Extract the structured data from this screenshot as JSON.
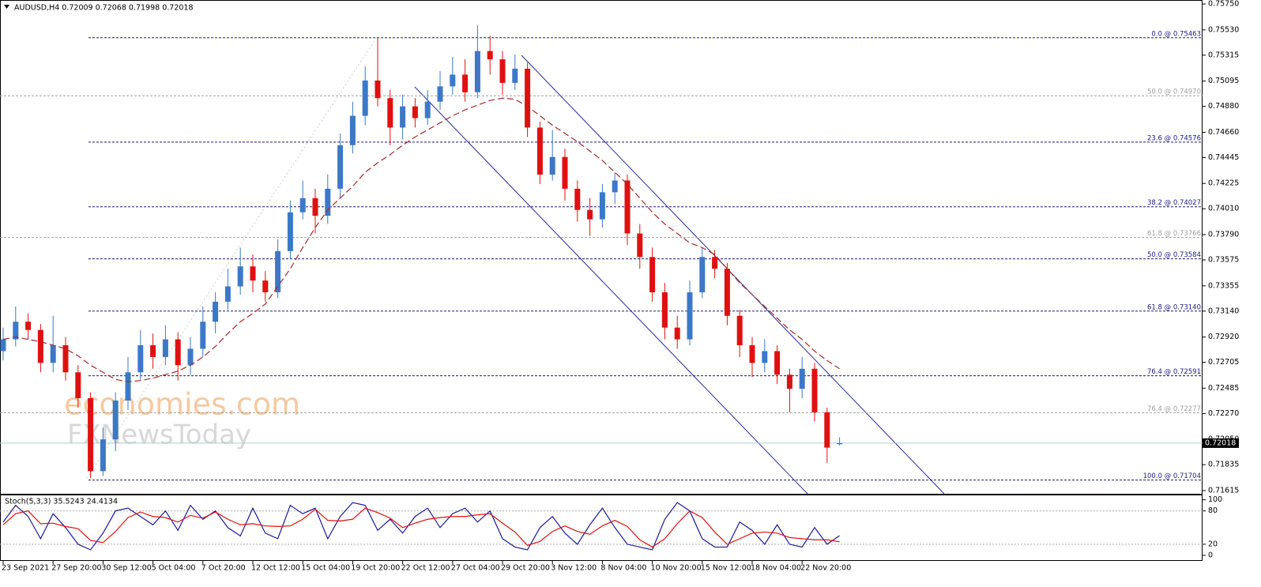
{
  "chart_data": [
    {
      "type": "candlestick",
      "title": "AUDUSD,H4  0.72009 0.72068 0.71998 0.72018",
      "watermark": [
        "economies.com",
        "FXNewsToday"
      ],
      "up_color": "#3c78c8",
      "down_color": "#e01010",
      "categories": [
        "23 Sep 2021",
        null,
        null,
        null,
        "27 Sep 20:00",
        null,
        null,
        null,
        "30 Sep 12:00",
        null,
        null,
        null,
        "5 Oct 04:00",
        null,
        null,
        null,
        "7 Oct 20:00",
        null,
        null,
        null,
        "12 Oct 12:00",
        null,
        null,
        null,
        "15 Oct 04:00",
        null,
        null,
        null,
        "19 Oct 20:00",
        null,
        null,
        null,
        "22 Oct 12:00",
        null,
        null,
        null,
        "27 Oct 04:00",
        null,
        null,
        null,
        "29 Oct 20:00",
        null,
        null,
        null,
        "3 Nov 12:00",
        null,
        null,
        null,
        "8 Nov 04:00",
        null,
        null,
        null,
        "10 Nov 20:00",
        null,
        null,
        null,
        "15 Nov 12:00",
        null,
        null,
        null,
        "18 Nov 04:00",
        null,
        null,
        null,
        "22 Nov 20:00",
        null,
        null,
        null
      ],
      "ohlc": [
        [
          0.728,
          0.73,
          0.7272,
          0.729
        ],
        [
          0.729,
          0.7318,
          0.7284,
          0.7305
        ],
        [
          0.7305,
          0.7312,
          0.729,
          0.7298
        ],
        [
          0.7298,
          0.7303,
          0.7262,
          0.727
        ],
        [
          0.727,
          0.731,
          0.7262,
          0.7285
        ],
        [
          0.7285,
          0.7292,
          0.7255,
          0.7262
        ],
        [
          0.7262,
          0.7268,
          0.7232,
          0.724
        ],
        [
          0.724,
          0.7245,
          0.7172,
          0.7178
        ],
        [
          0.7178,
          0.7215,
          0.7174,
          0.7205
        ],
        [
          0.7205,
          0.7245,
          0.7195,
          0.7238
        ],
        [
          0.7238,
          0.7275,
          0.723,
          0.7262
        ],
        [
          0.7262,
          0.7298,
          0.7255,
          0.7285
        ],
        [
          0.7285,
          0.7295,
          0.7265,
          0.7275
        ],
        [
          0.7275,
          0.7302,
          0.7268,
          0.729
        ],
        [
          0.729,
          0.7296,
          0.7255,
          0.7268
        ],
        [
          0.7268,
          0.7292,
          0.726,
          0.7282
        ],
        [
          0.7282,
          0.7318,
          0.7275,
          0.7305
        ],
        [
          0.7305,
          0.733,
          0.7295,
          0.7322
        ],
        [
          0.7322,
          0.735,
          0.7315,
          0.7335
        ],
        [
          0.7335,
          0.7368,
          0.7328,
          0.7352
        ],
        [
          0.7352,
          0.7362,
          0.733,
          0.734
        ],
        [
          0.734,
          0.7348,
          0.7322,
          0.733
        ],
        [
          0.733,
          0.7375,
          0.7325,
          0.7365
        ],
        [
          0.7365,
          0.7408,
          0.7358,
          0.7398
        ],
        [
          0.7398,
          0.7425,
          0.7392,
          0.741
        ],
        [
          0.741,
          0.7418,
          0.738,
          0.7395
        ],
        [
          0.7395,
          0.743,
          0.7388,
          0.7418
        ],
        [
          0.7418,
          0.7465,
          0.741,
          0.7455
        ],
        [
          0.7455,
          0.7492,
          0.7448,
          0.748
        ],
        [
          0.748,
          0.7522,
          0.7472,
          0.751
        ],
        [
          0.751,
          0.7546,
          0.7488,
          0.7495
        ],
        [
          0.7495,
          0.7502,
          0.7455,
          0.747
        ],
        [
          0.747,
          0.7498,
          0.746,
          0.7488
        ],
        [
          0.7488,
          0.7495,
          0.747,
          0.7478
        ],
        [
          0.7478,
          0.7502,
          0.7472,
          0.7492
        ],
        [
          0.7492,
          0.7518,
          0.7485,
          0.7505
        ],
        [
          0.7505,
          0.753,
          0.7498,
          0.7515
        ],
        [
          0.7515,
          0.7528,
          0.7492,
          0.75
        ],
        [
          0.75,
          0.7557,
          0.7495,
          0.7535
        ],
        [
          0.7535,
          0.7548,
          0.7515,
          0.7528
        ],
        [
          0.7528,
          0.7535,
          0.7498,
          0.7508
        ],
        [
          0.7508,
          0.7532,
          0.7502,
          0.752
        ],
        [
          0.752,
          0.7525,
          0.7462,
          0.747
        ],
        [
          0.747,
          0.7475,
          0.7422,
          0.743
        ],
        [
          0.743,
          0.7468,
          0.7425,
          0.7445
        ],
        [
          0.7445,
          0.7452,
          0.7408,
          0.7418
        ],
        [
          0.7418,
          0.7425,
          0.739,
          0.74
        ],
        [
          0.74,
          0.741,
          0.7378,
          0.7392
        ],
        [
          0.7392,
          0.7422,
          0.7385,
          0.7415
        ],
        [
          0.7415,
          0.7432,
          0.7405,
          0.7425
        ],
        [
          0.7425,
          0.743,
          0.737,
          0.738
        ],
        [
          0.738,
          0.7388,
          0.735,
          0.736
        ],
        [
          0.736,
          0.7368,
          0.7322,
          0.733
        ],
        [
          0.733,
          0.7338,
          0.729,
          0.73
        ],
        [
          0.73,
          0.731,
          0.7282,
          0.729
        ],
        [
          0.729,
          0.734,
          0.7285,
          0.733
        ],
        [
          0.733,
          0.7368,
          0.7325,
          0.736
        ],
        [
          0.736,
          0.7366,
          0.7342,
          0.735
        ],
        [
          0.735,
          0.7355,
          0.7302,
          0.731
        ],
        [
          0.731,
          0.7315,
          0.7275,
          0.7285
        ],
        [
          0.7285,
          0.7292,
          0.7258,
          0.727
        ],
        [
          0.727,
          0.729,
          0.7262,
          0.728
        ],
        [
          0.728,
          0.7285,
          0.7252,
          0.726
        ],
        [
          0.726,
          0.7265,
          0.7228,
          0.7248
        ],
        [
          0.7248,
          0.7275,
          0.724,
          0.7265
        ],
        [
          0.7265,
          0.727,
          0.722,
          0.7228
        ],
        [
          0.7228,
          0.7232,
          0.7185,
          0.7198
        ],
        [
          0.72009,
          0.72068,
          0.71998,
          0.72018
        ]
      ],
      "ma": {
        "color": "#a52a2a",
        "values": [
          0.729,
          0.7292,
          0.729,
          0.7288,
          0.7285,
          0.7282,
          0.7276,
          0.7268,
          0.7262,
          0.7256,
          0.7254,
          0.7255,
          0.7257,
          0.726,
          0.7263,
          0.7268,
          0.7275,
          0.7284,
          0.7295,
          0.7305,
          0.7312,
          0.732,
          0.7335,
          0.735,
          0.7368,
          0.7385,
          0.74,
          0.741,
          0.742,
          0.7432,
          0.744,
          0.7447,
          0.7455,
          0.7462,
          0.7468,
          0.7474,
          0.748,
          0.7485,
          0.7489,
          0.7493,
          0.7495,
          0.7494,
          0.7488,
          0.748,
          0.7472,
          0.7465,
          0.7458,
          0.745,
          0.7442,
          0.7432,
          0.7422,
          0.741,
          0.7398,
          0.7388,
          0.738,
          0.7372,
          0.7368,
          0.7362,
          0.735,
          0.7338,
          0.7328,
          0.7318,
          0.7308,
          0.7298,
          0.729,
          0.728,
          0.7272,
          0.7265
        ]
      },
      "ylim": [
        0.71581,
        0.75784
      ],
      "yticks": [
        {
          "value": 0.7575,
          "label": "0.75750"
        },
        {
          "value": 0.7553,
          "label": "0.75530"
        },
        {
          "value": 0.75315,
          "label": "0.75315"
        },
        {
          "value": 0.75095,
          "label": "0.75095"
        },
        {
          "value": 0.7488,
          "label": "0.74880"
        },
        {
          "value": 0.7466,
          "label": "0.74660"
        },
        {
          "value": 0.74445,
          "label": "0.74445"
        },
        {
          "value": 0.74225,
          "label": "0.74225"
        },
        {
          "value": 0.7401,
          "label": "0.74010"
        },
        {
          "value": 0.7379,
          "label": "0.73790"
        },
        {
          "value": 0.73575,
          "label": "0.73575"
        },
        {
          "value": 0.73355,
          "label": "0.73355"
        },
        {
          "value": 0.7314,
          "label": "0.73140"
        },
        {
          "value": 0.7292,
          "label": "0.72920"
        },
        {
          "value": 0.72705,
          "label": "0.72705"
        },
        {
          "value": 0.72485,
          "label": "0.72485"
        },
        {
          "value": 0.7227,
          "label": "0.72270"
        },
        {
          "value": 0.7205,
          "label": "0.72050"
        },
        {
          "value": 0.71835,
          "label": "0.71835"
        },
        {
          "value": 0.71615,
          "label": "0.71615"
        }
      ],
      "last_price": {
        "value": 0.72018,
        "label": "0.72018"
      },
      "levels": [
        {
          "value": 0.75463,
          "label": "0.0 @ 0.75463",
          "color": "#1a1a80"
        },
        {
          "value": 0.7497,
          "label": "50.0 @ 0.74970",
          "color": "#a0a0a0"
        },
        {
          "value": 0.74576,
          "label": "23.6 @ 0.74576",
          "color": "#1a1a80"
        },
        {
          "value": 0.74027,
          "label": "38.2 @ 0.74027",
          "color": "#1a1a80"
        },
        {
          "value": 0.73766,
          "label": "61.8 @ 0.73766",
          "color": "#a0a0a0"
        },
        {
          "value": 0.73584,
          "label": "50.0 @ 0.73584",
          "color": "#1a1a80"
        },
        {
          "value": 0.7314,
          "label": "61.8 @ 0.73140",
          "color": "#1a1a80"
        },
        {
          "value": 0.72591,
          "label": "76.4 @ 0.72591",
          "color": "#1a1a80"
        },
        {
          "value": 0.72277,
          "label": "76.4 @ 0.72277",
          "color": "#a0a0a0"
        },
        {
          "value": 0.71704,
          "label": "100.0 @ 0.71704",
          "color": "#1a1a80"
        }
      ]
    },
    {
      "type": "line",
      "title": "Stoch(5,3,3) 35.5243 24.4134",
      "series": [
        {
          "name": "%K",
          "color": "#1a1a9a",
          "values": [
            60,
            90,
            70,
            30,
            75,
            50,
            20,
            10,
            40,
            80,
            85,
            70,
            55,
            80,
            45,
            90,
            65,
            80,
            50,
            35,
            85,
            40,
            30,
            90,
            75,
            85,
            30,
            70,
            95,
            90,
            45,
            65,
            40,
            70,
            85,
            50,
            75,
            85,
            60,
            80,
            30,
            15,
            10,
            50,
            70,
            40,
            20,
            55,
            85,
            50,
            20,
            15,
            10,
            65,
            95,
            80,
            30,
            15,
            15,
            60,
            45,
            20,
            55,
            20,
            15,
            50,
            20,
            35.5243
          ]
        },
        {
          "name": "%D",
          "color": "#e01010",
          "values": [
            55,
            75,
            80,
            57,
            58,
            52,
            48,
            27,
            23,
            43,
            68,
            78,
            70,
            68,
            60,
            72,
            67,
            78,
            65,
            55,
            57,
            53,
            52,
            53,
            65,
            83,
            63,
            62,
            65,
            85,
            77,
            67,
            50,
            58,
            65,
            68,
            70,
            70,
            73,
            75,
            58,
            42,
            18,
            25,
            43,
            53,
            43,
            38,
            53,
            63,
            52,
            28,
            15,
            30,
            57,
            80,
            68,
            42,
            20,
            30,
            40,
            42,
            40,
            32,
            30,
            28,
            28,
            24.4134
          ]
        }
      ],
      "ylim": [
        -10,
        108
      ],
      "yticks": [
        100,
        80,
        20,
        0
      ],
      "levels": [
        80,
        20
      ]
    }
  ]
}
